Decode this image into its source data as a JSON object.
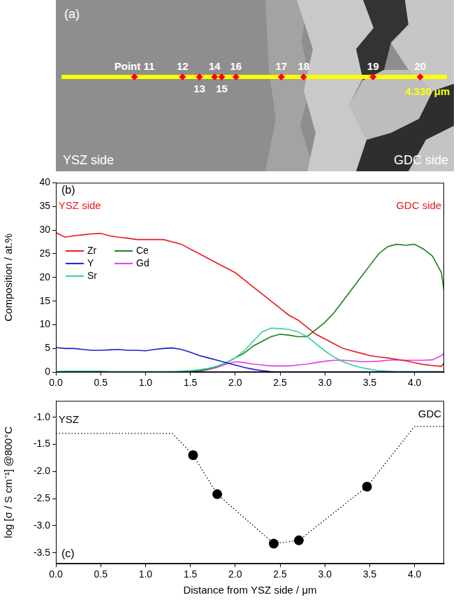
{
  "panel_a": {
    "panel": "(a)",
    "left_label": "YSZ side",
    "right_label": "GDC side",
    "length_label": "4.330 μm",
    "xlim": [
      0,
      4.33
    ],
    "line_color": "#ffff00",
    "point_color": "#ff0000",
    "points": [
      {
        "label": "Point 11",
        "x": 0.82
      },
      {
        "label": "12",
        "x": 1.36
      },
      {
        "label": "13",
        "x": 1.55
      },
      {
        "label": "14",
        "x": 1.72
      },
      {
        "label": "15",
        "x": 1.8
      },
      {
        "label": "16",
        "x": 1.96
      },
      {
        "label": "17",
        "x": 2.47
      },
      {
        "label": "18",
        "x": 2.72
      },
      {
        "label": "19",
        "x": 3.5
      },
      {
        "label": "20",
        "x": 4.03
      }
    ]
  },
  "chart_data": [
    {
      "type": "line",
      "panel": "(b)",
      "y_label": "Composition / at.%",
      "x": [
        0,
        0.1,
        0.2,
        0.3,
        0.4,
        0.5,
        0.6,
        0.7,
        0.8,
        0.9,
        1.0,
        1.1,
        1.2,
        1.3,
        1.4,
        1.5,
        1.6,
        1.7,
        1.8,
        1.9,
        2.0,
        2.1,
        2.2,
        2.3,
        2.4,
        2.5,
        2.6,
        2.7,
        2.8,
        2.9,
        3.0,
        3.1,
        3.2,
        3.3,
        3.4,
        3.5,
        3.6,
        3.7,
        3.8,
        3.9,
        4.0,
        4.1,
        4.2,
        4.3,
        4.33
      ],
      "series": [
        {
          "name": "Zr",
          "color": "#e8191c",
          "values": [
            29.5,
            28.5,
            28.8,
            29,
            29.2,
            29.3,
            28.8,
            28.5,
            28.3,
            28,
            28,
            28,
            28,
            27.5,
            27,
            26,
            25,
            24,
            23,
            22,
            21,
            19.5,
            18,
            16.5,
            15,
            13.5,
            12,
            11,
            9.5,
            8,
            7,
            6,
            5,
            4.5,
            4,
            3.5,
            3.2,
            3,
            2.7,
            2.4,
            2,
            1.6,
            1.4,
            1.2,
            2.0
          ]
        },
        {
          "name": "Y",
          "color": "#1c1cd6",
          "values": [
            5.2,
            5,
            5,
            4.8,
            4.6,
            4.6,
            4.7,
            4.8,
            4.6,
            4.6,
            4.5,
            4.8,
            5,
            5.1,
            4.8,
            4.2,
            3.5,
            3,
            2.5,
            2,
            1.5,
            1,
            0.6,
            0.3,
            0.1,
            0,
            0,
            0,
            0,
            0,
            0,
            0,
            0,
            0,
            0,
            0,
            0,
            0,
            0,
            0,
            0,
            0,
            0,
            0,
            0
          ]
        },
        {
          "name": "Sr",
          "color": "#2fd19c",
          "values": [
            0.1,
            0.2,
            0.2,
            0.2,
            0.2,
            0.2,
            0.1,
            0.1,
            0.1,
            0.1,
            0.1,
            0.1,
            0.1,
            0.1,
            0.2,
            0.3,
            0.5,
            0.8,
            1.3,
            2,
            3,
            4.5,
            6.5,
            8.5,
            9.3,
            9.2,
            9,
            8.5,
            7.5,
            6,
            4.5,
            3.2,
            2.2,
            1.5,
            1,
            0.6,
            0.3,
            0.2,
            0.1,
            0.1,
            0.1,
            0.1,
            0.1,
            0.1,
            0.1
          ]
        },
        {
          "name": "Ce",
          "color": "#1b7d1b",
          "values": [
            0,
            0,
            0,
            0,
            0,
            0,
            0,
            0,
            0,
            0,
            0,
            0,
            0,
            0,
            0,
            0.1,
            0.3,
            0.7,
            1.2,
            2,
            3,
            4,
            5.5,
            6.5,
            7.5,
            8,
            7.8,
            7.5,
            7.5,
            9,
            10.5,
            12.5,
            15,
            17.5,
            20,
            22.5,
            25,
            26.5,
            27,
            26.8,
            27,
            26,
            24.5,
            21,
            17
          ]
        },
        {
          "name": "Gd",
          "color": "#e63ce6",
          "values": [
            0,
            0,
            0,
            0,
            0,
            0,
            0,
            0,
            0,
            0,
            0,
            0,
            0,
            0,
            0,
            0,
            0.2,
            0.5,
            1,
            1.7,
            2.2,
            2,
            1.7,
            1.5,
            1.3,
            1.3,
            1.3,
            1.5,
            1.7,
            2,
            2.3,
            2.5,
            2.5,
            2.4,
            2.2,
            2.2,
            2.3,
            2.5,
            2.6,
            2.5,
            2.5,
            2.5,
            2.6,
            3.5,
            4
          ]
        }
      ],
      "xlim": [
        0,
        4.33
      ],
      "xticks": [
        {
          "value": 0,
          "label": "0.0"
        },
        0.5,
        {
          "value": 1,
          "label": "1.0"
        },
        1.5,
        {
          "value": 2,
          "label": "2.0"
        },
        2.5,
        {
          "value": 3,
          "label": "3.0"
        },
        3.5,
        {
          "value": 4,
          "label": "4.0"
        }
      ],
      "ylim": [
        0,
        40
      ],
      "yticks": [
        0,
        5,
        10,
        15,
        20,
        25,
        30,
        35,
        40
      ],
      "grid": false,
      "legend": "left",
      "annotations": [
        {
          "text": "YSZ side",
          "x": 0.03,
          "y": 35,
          "color": "#e8191c"
        },
        {
          "text": "GDC side",
          "x": 4.3,
          "y": 35,
          "color": "#e8191c"
        }
      ]
    },
    {
      "type": "scatter",
      "panel": "(c)",
      "y_label": "log [σ / S cm⁻¹] @800°C",
      "x_label": "Distance from YSZ side / μm",
      "series": [
        {
          "type": "line",
          "line_style": "dotted",
          "color": "#000000",
          "x": [
            0,
            1.3,
            1.53,
            1.8,
            2.43,
            2.71,
            3.47,
            4.0,
            4.33
          ],
          "values": [
            -1.3,
            -1.3,
            -1.7,
            -2.42,
            -3.33,
            -3.27,
            -2.28,
            -1.17,
            -1.17
          ]
        },
        {
          "type": "scatter",
          "marker": "circle",
          "color": "#000000",
          "x": [
            1.53,
            1.8,
            2.43,
            2.71,
            3.47
          ],
          "values": [
            -1.7,
            -2.42,
            -3.33,
            -3.27,
            -2.28
          ]
        }
      ],
      "xlim": [
        0,
        4.33
      ],
      "xticks": [
        {
          "value": 0,
          "label": "0.0"
        },
        0.5,
        {
          "value": 1,
          "label": "1.0"
        },
        1.5,
        {
          "value": 2,
          "label": "2.0"
        },
        2.5,
        {
          "value": 3,
          "label": "3.0"
        },
        3.5,
        {
          "value": 4,
          "label": "4.0"
        }
      ],
      "ylim": [
        -3.7,
        -0.7
      ],
      "yticks": [
        -3.5,
        {
          "value": -3,
          "label": "-3.0"
        },
        -2.5,
        {
          "value": -2,
          "label": "-2.0"
        },
        -1.5,
        {
          "value": -1,
          "label": "-1.0"
        }
      ],
      "grid": false,
      "annotations": [
        {
          "text": "YSZ",
          "x": 0.03,
          "y": -1.05,
          "color": "#000000"
        },
        {
          "text": "GDC",
          "x": 4.3,
          "y": -0.95,
          "color": "#000000"
        }
      ]
    }
  ]
}
